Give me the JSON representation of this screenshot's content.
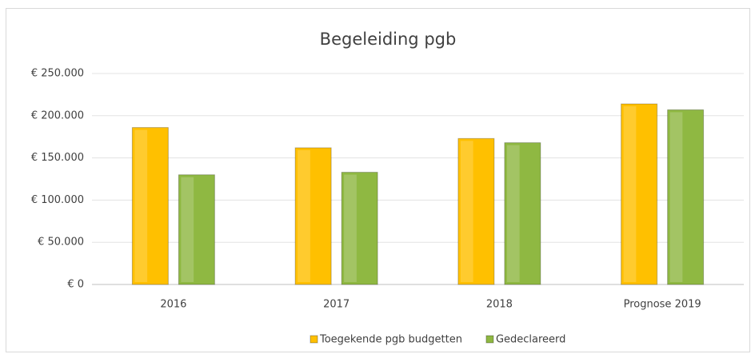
{
  "chart_data": {
    "type": "bar",
    "title": "Begeleiding pgb",
    "categories": [
      "2016",
      "2017",
      "2018",
      "Prognose 2019"
    ],
    "series": [
      {
        "name": "Toegekende pgb budgetten",
        "color": "#ffc000",
        "values": [
          186000,
          162000,
          173000,
          214000
        ]
      },
      {
        "name": "Gedeclareerd",
        "color": "#8fb842",
        "values": [
          130000,
          133000,
          168000,
          207000
        ]
      }
    ],
    "ylim": [
      0,
      250000
    ],
    "yticks": [
      {
        "value": 0,
        "label": "€ 0"
      },
      {
        "value": 50000,
        "label": "€ 50.000"
      },
      {
        "value": 100000,
        "label": "€ 100.000"
      },
      {
        "value": 150000,
        "label": "€ 150.000"
      },
      {
        "value": 200000,
        "label": "€ 200.000"
      },
      {
        "value": 250000,
        "label": "€ 250.000"
      }
    ],
    "grid": true,
    "legend": "bottom"
  }
}
